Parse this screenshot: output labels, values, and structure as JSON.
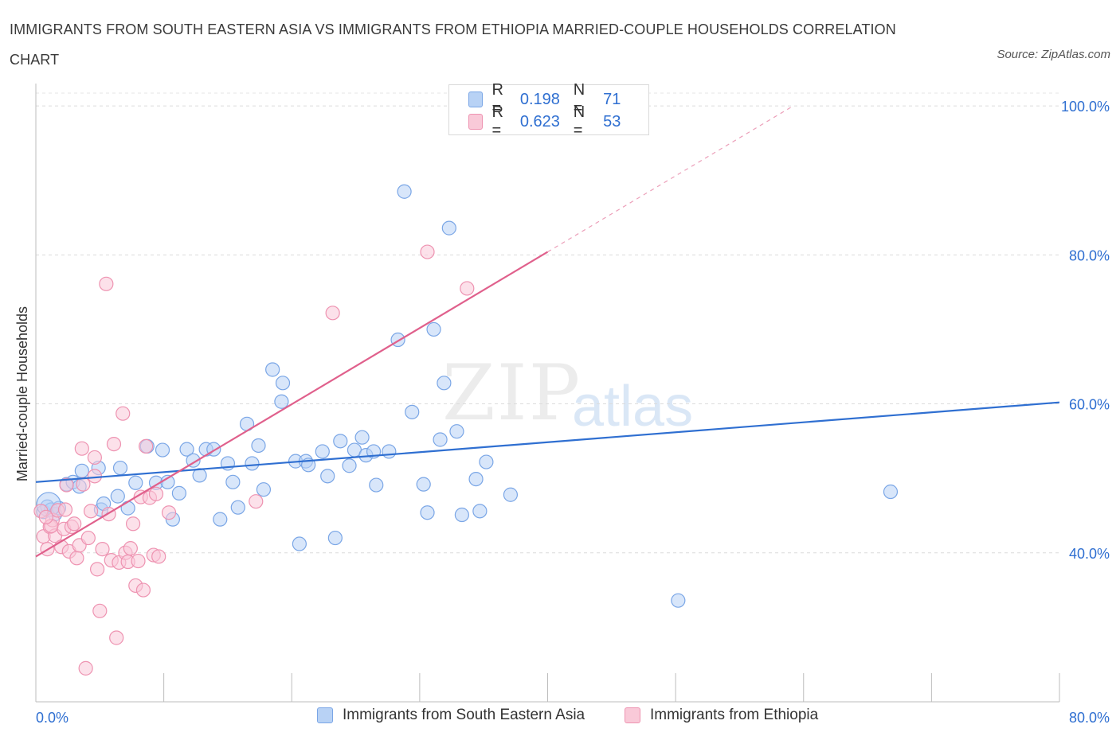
{
  "title": "IMMIGRANTS FROM SOUTH EASTERN ASIA VS IMMIGRANTS FROM ETHIOPIA MARRIED-COUPLE HOUSEHOLDS CORRELATION CHART",
  "source": "Source: ZipAtlas.com",
  "watermark": {
    "zip": "ZIP",
    "atlas": "atlas"
  },
  "colors": {
    "blue": "#2f6fd1",
    "blue_fill": "#b8d2f5",
    "pink": "#e0608c",
    "pink_fill": "#f9c9d8",
    "axis_label": "#2f6fd1"
  },
  "legend_top": [
    {
      "r_label": "R =",
      "r_value": "0.198",
      "n_label": "N =",
      "n_value": "71"
    },
    {
      "r_label": "R =",
      "r_value": "0.623",
      "n_label": "N =",
      "n_value": "53"
    }
  ],
  "legend_bottom": [
    "Immigrants from South Eastern Asia",
    "Immigrants from Ethiopia"
  ],
  "chart_data": {
    "type": "scatter",
    "title": "IMMIGRANTS FROM SOUTH EASTERN ASIA VS IMMIGRANTS FROM ETHIOPIA MARRIED-COUPLE HOUSEHOLDS CORRELATION CHART",
    "xlabel": "",
    "ylabel": "Married-couple Households",
    "xlim": [
      0,
      80
    ],
    "ylim": [
      20,
      103
    ],
    "x_tick_labels": [
      {
        "value": 0,
        "label": "0.0%"
      },
      {
        "value": 80,
        "label": "80.0%"
      }
    ],
    "y_tick_labels": [
      {
        "value": 100,
        "label": "100.0%"
      },
      {
        "value": 80,
        "label": "80.0%"
      },
      {
        "value": 60,
        "label": "60.0%"
      },
      {
        "value": 40,
        "label": "40.0%"
      }
    ],
    "grid": true,
    "series": [
      {
        "name": "Immigrants from South Eastern Asia",
        "color": "#2f6fd1",
        "R": 0.198,
        "N": 71,
        "trend": {
          "x0": 0,
          "y0": 49.5,
          "x1": 80,
          "y1": 60.2
        },
        "points": [
          [
            0.6,
            45.5
          ],
          [
            0.9,
            46.2
          ],
          [
            1.2,
            45.8
          ],
          [
            1.5,
            45.2
          ],
          [
            1.8,
            46
          ],
          [
            2.4,
            49.2
          ],
          [
            2.9,
            49.5
          ],
          [
            3.4,
            48.9
          ],
          [
            3.6,
            51
          ],
          [
            4.9,
            51.4
          ],
          [
            5.1,
            45.8
          ],
          [
            5.3,
            46.6
          ],
          [
            6.4,
            47.6
          ],
          [
            6.6,
            51.4
          ],
          [
            7.2,
            46
          ],
          [
            7.8,
            49.4
          ],
          [
            8.7,
            54.3
          ],
          [
            9.4,
            49.4
          ],
          [
            9.9,
            53.8
          ],
          [
            10.3,
            49.5
          ],
          [
            10.7,
            44.5
          ],
          [
            11.2,
            48
          ],
          [
            11.8,
            53.9
          ],
          [
            12.3,
            52.4
          ],
          [
            12.8,
            50.4
          ],
          [
            13.3,
            53.9
          ],
          [
            13.9,
            53.9
          ],
          [
            14.4,
            44.5
          ],
          [
            15,
            52
          ],
          [
            15.4,
            49.5
          ],
          [
            15.8,
            46.1
          ],
          [
            16.5,
            57.3
          ],
          [
            16.9,
            52
          ],
          [
            17.4,
            54.4
          ],
          [
            17.8,
            48.5
          ],
          [
            18.5,
            64.6
          ],
          [
            19.2,
            60.3
          ],
          [
            19.3,
            62.8
          ],
          [
            20.3,
            52.3
          ],
          [
            20.6,
            41.2
          ],
          [
            21.1,
            52.3
          ],
          [
            21.3,
            51.8
          ],
          [
            22.4,
            53.6
          ],
          [
            22.8,
            50.3
          ],
          [
            23.4,
            42
          ],
          [
            23.8,
            55
          ],
          [
            24.5,
            51.7
          ],
          [
            24.9,
            53.8
          ],
          [
            25.5,
            55.5
          ],
          [
            25.8,
            53.1
          ],
          [
            26.4,
            53.6
          ],
          [
            26.6,
            49.1
          ],
          [
            27.6,
            53.6
          ],
          [
            28.3,
            68.6
          ],
          [
            28.8,
            88.5
          ],
          [
            29.4,
            58.9
          ],
          [
            30.3,
            49.2
          ],
          [
            30.6,
            45.4
          ],
          [
            31.1,
            70
          ],
          [
            31.6,
            55.2
          ],
          [
            31.9,
            62.8
          ],
          [
            32.3,
            83.6
          ],
          [
            32.9,
            56.3
          ],
          [
            33.3,
            45.1
          ],
          [
            34.4,
            49.9
          ],
          [
            34.7,
            45.6
          ],
          [
            35.2,
            52.2
          ],
          [
            37.1,
            47.8
          ],
          [
            50.2,
            33.6
          ],
          [
            66.8,
            48.2
          ],
          [
            1,
            46.5
          ]
        ]
      },
      {
        "name": "Immigrants from Ethiopia",
        "color": "#e0608c",
        "R": 0.623,
        "N": 53,
        "trend": {
          "x0": 0,
          "y0": 39.5,
          "x1": 40,
          "y1": 80.4
        },
        "trend_ext": {
          "x0": 40,
          "y0": 80.4,
          "x1": 59,
          "y1": 99.8
        },
        "points": [
          [
            0.4,
            45.6
          ],
          [
            0.6,
            42.2
          ],
          [
            0.9,
            40.5
          ],
          [
            1.1,
            43.5
          ],
          [
            1.3,
            44.4
          ],
          [
            1.5,
            42.3
          ],
          [
            1.7,
            45.7
          ],
          [
            2,
            40.8
          ],
          [
            2.2,
            43.2
          ],
          [
            2.3,
            45.8
          ],
          [
            2.4,
            49.1
          ],
          [
            2.6,
            40.2
          ],
          [
            2.8,
            43.5
          ],
          [
            3,
            43.9
          ],
          [
            3.2,
            39.3
          ],
          [
            3.4,
            41
          ],
          [
            3.6,
            54
          ],
          [
            3.7,
            49.2
          ],
          [
            3.9,
            24.5
          ],
          [
            4.1,
            42
          ],
          [
            4.3,
            45.6
          ],
          [
            4.6,
            50.3
          ],
          [
            4.6,
            52.8
          ],
          [
            4.8,
            37.8
          ],
          [
            5,
            32.2
          ],
          [
            5.2,
            40.5
          ],
          [
            5.5,
            76.1
          ],
          [
            5.7,
            45.2
          ],
          [
            5.9,
            39
          ],
          [
            6.1,
            54.6
          ],
          [
            6.3,
            28.6
          ],
          [
            6.5,
            38.7
          ],
          [
            6.8,
            58.7
          ],
          [
            7,
            40
          ],
          [
            7.2,
            38.8
          ],
          [
            7.4,
            40.6
          ],
          [
            7.6,
            43.9
          ],
          [
            7.8,
            35.6
          ],
          [
            8,
            38.9
          ],
          [
            8.2,
            47.5
          ],
          [
            8.4,
            35
          ],
          [
            8.6,
            54.3
          ],
          [
            8.9,
            47.4
          ],
          [
            9.2,
            39.7
          ],
          [
            9.4,
            47.9
          ],
          [
            9.6,
            39.5
          ],
          [
            10.4,
            45.4
          ],
          [
            17.2,
            46.9
          ],
          [
            23.2,
            72.2
          ],
          [
            30.6,
            80.4
          ],
          [
            33.7,
            75.5
          ],
          [
            1.2,
            43.6
          ],
          [
            0.8,
            44.8
          ]
        ]
      }
    ]
  }
}
